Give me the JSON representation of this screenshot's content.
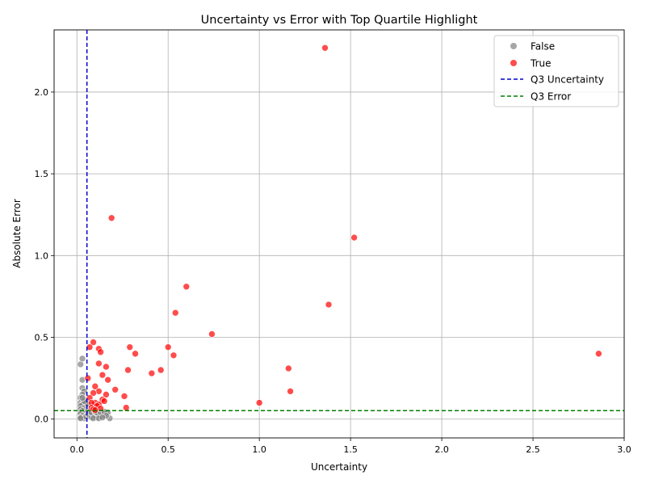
{
  "chart_data": {
    "type": "scatter",
    "title": "Uncertainty vs Error with Top Quartile Highlight",
    "xlabel": "Uncertainty",
    "ylabel": "Absolute Error",
    "xlim": [
      -0.125,
      3.0
    ],
    "ylim": [
      -0.115,
      2.38
    ],
    "xticks": [
      0.0,
      0.5,
      1.0,
      1.5,
      2.0,
      2.5,
      3.0
    ],
    "xtick_labels": [
      "0.0",
      "0.5",
      "1.0",
      "1.5",
      "2.0",
      "2.5",
      "3.0"
    ],
    "yticks": [
      0.0,
      0.5,
      1.0,
      1.5,
      2.0
    ],
    "ytick_labels": [
      "0.0",
      "0.5",
      "1.0",
      "1.5",
      "2.0"
    ],
    "grid": true,
    "legend_position": "upper right",
    "series": [
      {
        "name": "False",
        "color": "#808080",
        "points": [
          [
            0.02,
            0.335
          ],
          [
            0.03,
            0.37
          ],
          [
            0.03,
            0.24
          ],
          [
            0.03,
            0.19
          ],
          [
            0.04,
            0.17
          ],
          [
            0.03,
            0.15
          ],
          [
            0.02,
            0.13
          ],
          [
            0.04,
            0.12
          ],
          [
            0.02,
            0.1
          ],
          [
            0.03,
            0.09
          ],
          [
            0.02,
            0.08
          ],
          [
            0.04,
            0.07
          ],
          [
            0.02,
            0.06
          ],
          [
            0.03,
            0.05
          ],
          [
            0.02,
            0.04
          ],
          [
            0.04,
            0.035
          ],
          [
            0.02,
            0.03
          ],
          [
            0.03,
            0.02
          ],
          [
            0.02,
            0.01
          ],
          [
            0.04,
            0.005
          ],
          [
            0.05,
            0.015
          ],
          [
            0.06,
            0.03
          ],
          [
            0.07,
            0.02
          ],
          [
            0.08,
            0.01
          ],
          [
            0.09,
            0.03
          ],
          [
            0.1,
            0.02
          ],
          [
            0.11,
            0.01
          ],
          [
            0.12,
            0.025
          ],
          [
            0.13,
            0.015
          ],
          [
            0.14,
            0.03
          ],
          [
            0.15,
            0.02
          ],
          [
            0.16,
            0.035
          ],
          [
            0.17,
            0.04
          ],
          [
            0.18,
            0.005
          ],
          [
            0.06,
            0.05
          ],
          [
            0.07,
            0.045
          ],
          [
            0.08,
            0.04
          ],
          [
            0.09,
            0.005
          ],
          [
            0.1,
            0.045
          ],
          [
            0.05,
            0.1
          ],
          [
            0.06,
            0.09
          ],
          [
            0.04,
            0.11
          ],
          [
            0.03,
            0.13
          ],
          [
            0.02,
            0.005
          ],
          [
            0.11,
            0.04
          ],
          [
            0.13,
            0.04
          ],
          [
            0.15,
            0.045
          ],
          [
            0.12,
            0.005
          ],
          [
            0.16,
            0.02
          ],
          [
            0.14,
            0.01
          ]
        ]
      },
      {
        "name": "True",
        "color": "#ff0000",
        "points": [
          [
            1.36,
            2.27
          ],
          [
            0.19,
            1.23
          ],
          [
            1.52,
            1.11
          ],
          [
            0.6,
            0.81
          ],
          [
            1.38,
            0.7
          ],
          [
            0.54,
            0.65
          ],
          [
            0.74,
            0.52
          ],
          [
            0.09,
            0.47
          ],
          [
            0.07,
            0.44
          ],
          [
            0.12,
            0.43
          ],
          [
            0.13,
            0.41
          ],
          [
            0.29,
            0.44
          ],
          [
            0.5,
            0.44
          ],
          [
            0.32,
            0.4
          ],
          [
            0.53,
            0.39
          ],
          [
            2.86,
            0.4
          ],
          [
            0.12,
            0.34
          ],
          [
            0.16,
            0.32
          ],
          [
            1.16,
            0.31
          ],
          [
            0.46,
            0.3
          ],
          [
            0.28,
            0.3
          ],
          [
            0.41,
            0.28
          ],
          [
            0.14,
            0.27
          ],
          [
            0.17,
            0.24
          ],
          [
            0.06,
            0.25
          ],
          [
            0.1,
            0.2
          ],
          [
            0.21,
            0.18
          ],
          [
            1.17,
            0.17
          ],
          [
            0.12,
            0.17
          ],
          [
            0.09,
            0.16
          ],
          [
            0.16,
            0.15
          ],
          [
            0.26,
            0.14
          ],
          [
            0.07,
            0.13
          ],
          [
            0.14,
            0.12
          ],
          [
            0.15,
            0.11
          ],
          [
            0.1,
            0.1
          ],
          [
            0.08,
            0.1
          ],
          [
            1.0,
            0.1
          ],
          [
            0.12,
            0.09
          ],
          [
            0.11,
            0.08
          ],
          [
            0.27,
            0.07
          ],
          [
            0.08,
            0.07
          ],
          [
            0.13,
            0.065
          ],
          [
            0.09,
            0.06
          ],
          [
            0.1,
            0.055
          ]
        ]
      }
    ],
    "reference_lines": [
      {
        "name": "Q3 Uncertainty",
        "orientation": "vertical",
        "value": 0.055,
        "color": "#0000cc"
      },
      {
        "name": "Q3 Error",
        "orientation": "horizontal",
        "value": 0.052,
        "color": "#008000"
      }
    ]
  }
}
